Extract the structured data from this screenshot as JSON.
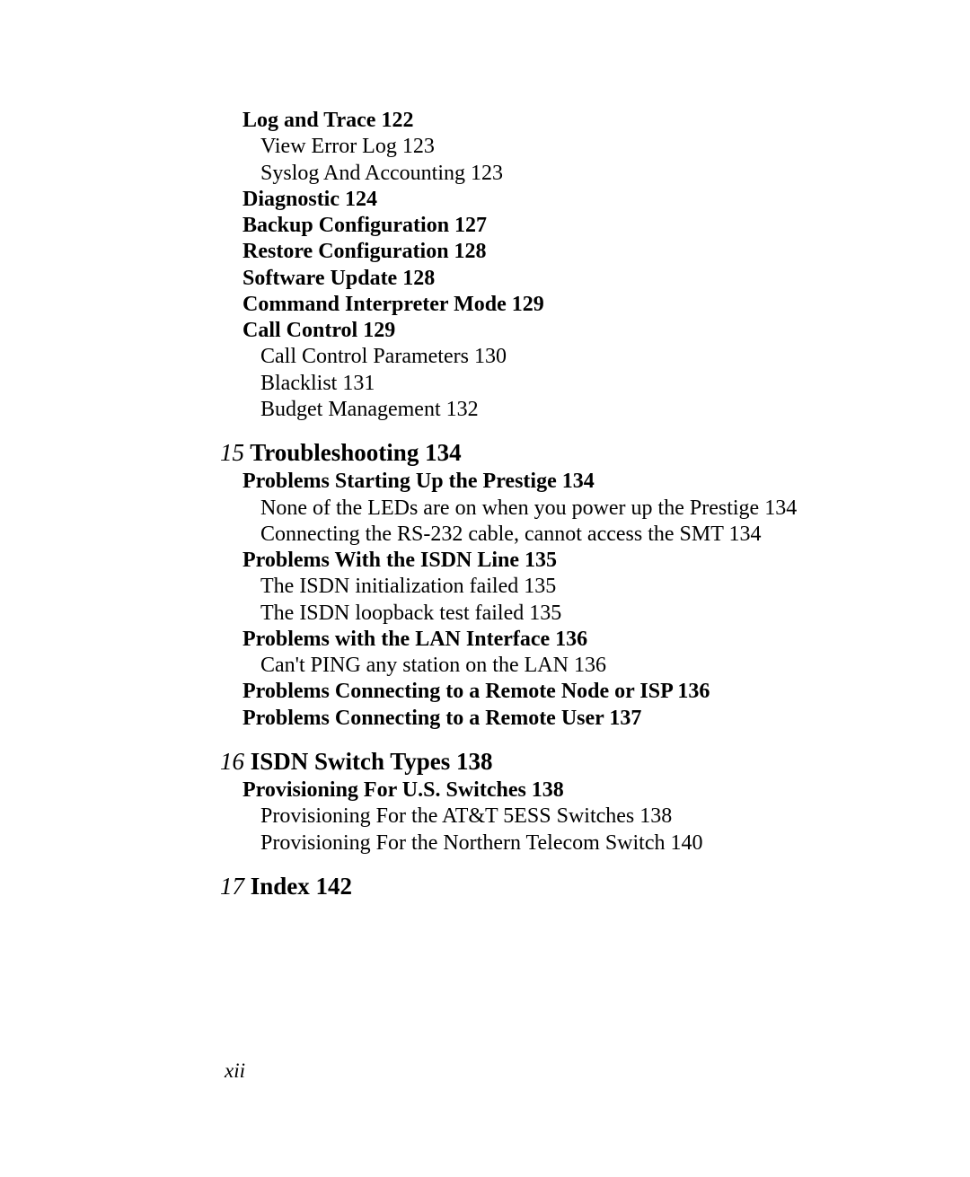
{
  "sections": {
    "cont14": {
      "log_and_trace": "Log and Trace 122",
      "view_error_log": "View Error Log 123",
      "syslog_accounting": "Syslog And Accounting 123",
      "diagnostic": "Diagnostic 124",
      "backup_config": "Backup Configuration 127",
      "restore_config": "Restore Configuration 128",
      "software_update": "Software Update 128",
      "command_interpreter": "Command Interpreter Mode 129",
      "call_control": "Call Control 129",
      "call_control_params": "Call Control Parameters 130",
      "blacklist": "Blacklist 131",
      "budget_mgmt": "Budget Management 132"
    },
    "ch15": {
      "num": "15",
      "title": " Troubleshooting 134",
      "problems_starting": "Problems Starting Up the Prestige 134",
      "none_leds": "None of the LEDs are on when you power up the Prestige 134",
      "connecting_rs232": "Connecting the RS-232 cable, cannot access the SMT 134",
      "problems_isdn": "Problems With the ISDN Line 135",
      "isdn_init_failed": "The ISDN initialization failed 135",
      "isdn_loopback_failed": "The ISDN loopback test failed 135",
      "problems_lan": "Problems with the LAN Interface 136",
      "cant_ping": "Can't PING any station on the LAN 136",
      "problems_remote_node": "Problems Connecting to a Remote Node or ISP 136",
      "problems_remote_user": "Problems Connecting to a Remote User 137"
    },
    "ch16": {
      "num": "16",
      "title": " ISDN Switch Types 138",
      "provisioning_us": "Provisioning For U.S. Switches 138",
      "provisioning_att": "Provisioning For the AT&T 5ESS Switches 138",
      "provisioning_northern": "Provisioning For the Northern Telecom Switch 140"
    },
    "ch17": {
      "num": "17",
      "title": " Index 142"
    }
  },
  "page_number": "xii"
}
